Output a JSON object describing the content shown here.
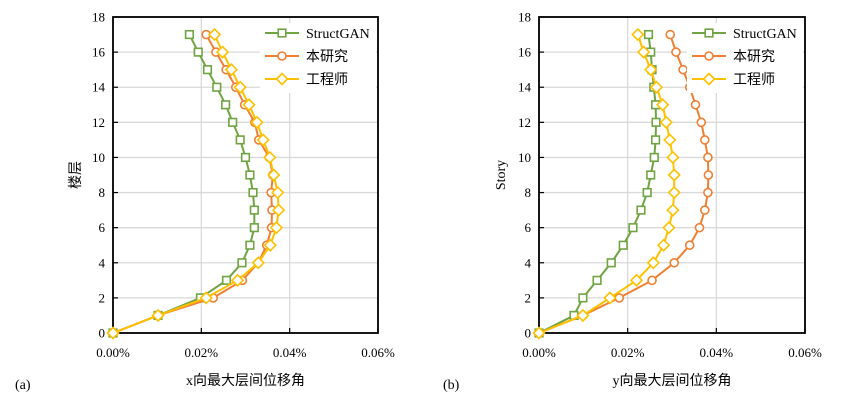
{
  "chart_data": [
    {
      "type": "line",
      "panel_label": "(a)",
      "xlabel": "x向最大层间位移角",
      "ylabel": "楼层",
      "xlim": [
        0,
        0.06
      ],
      "ylim": [
        0,
        18
      ],
      "x_unit": "%",
      "xticks": [
        "0.00%",
        "0.02%",
        "0.04%",
        "0.06%"
      ],
      "yticks": [
        "0",
        "2",
        "4",
        "6",
        "8",
        "10",
        "12",
        "14",
        "16",
        "18"
      ],
      "grid": true,
      "legend_position": "top-right",
      "y": [
        0,
        1,
        2,
        3,
        4,
        5,
        6,
        7,
        8,
        9,
        10,
        11,
        12,
        13,
        14,
        15,
        16,
        17
      ],
      "series": [
        {
          "name": "StructGAN",
          "color": "#70a442",
          "marker": "square",
          "values": [
            0,
            0.0102,
            0.0198,
            0.0257,
            0.0292,
            0.031,
            0.032,
            0.032,
            0.0317,
            0.031,
            0.03,
            0.0288,
            0.0271,
            0.0255,
            0.0235,
            0.0214,
            0.0193,
            0.0173
          ]
        },
        {
          "name": "本研究",
          "color": "#f07f33",
          "marker": "circle",
          "values": [
            0,
            0.0102,
            0.0227,
            0.0293,
            0.0329,
            0.0348,
            0.0359,
            0.036,
            0.0358,
            0.0362,
            0.0354,
            0.033,
            0.0321,
            0.0298,
            0.0278,
            0.0256,
            0.0233,
            0.0211
          ]
        },
        {
          "name": "工程师",
          "color": "#ffc000",
          "marker": "diamond",
          "values": [
            0,
            0.0102,
            0.0211,
            0.0282,
            0.0329,
            0.0356,
            0.037,
            0.0375,
            0.0373,
            0.0364,
            0.0355,
            0.034,
            0.0326,
            0.0308,
            0.0288,
            0.0268,
            0.0248,
            0.023
          ]
        }
      ]
    },
    {
      "type": "line",
      "panel_label": "(b)",
      "xlabel": "y向最大层间位移角",
      "ylabel": "Story",
      "xlim": [
        0,
        0.06
      ],
      "ylim": [
        0,
        18
      ],
      "x_unit": "%",
      "xticks": [
        "0.00%",
        "0.02%",
        "0.04%",
        "0.06%"
      ],
      "yticks": [
        "0",
        "2",
        "4",
        "6",
        "8",
        "10",
        "12",
        "14",
        "16",
        "18"
      ],
      "grid": true,
      "legend_position": "top-right",
      "y": [
        0,
        1,
        2,
        3,
        4,
        5,
        6,
        7,
        8,
        9,
        10,
        11,
        12,
        13,
        14,
        15,
        16,
        17
      ],
      "series": [
        {
          "name": "StructGAN",
          "color": "#70a442",
          "marker": "square",
          "values": [
            0,
            0.0079,
            0.0099,
            0.0131,
            0.0163,
            0.019,
            0.0212,
            0.023,
            0.0244,
            0.0252,
            0.026,
            0.0263,
            0.0264,
            0.0263,
            0.0259,
            0.0255,
            0.0252,
            0.0247
          ]
        },
        {
          "name": "本研究",
          "color": "#f07f33",
          "marker": "circle",
          "values": [
            0,
            0.0099,
            0.0181,
            0.0255,
            0.0305,
            0.034,
            0.0362,
            0.0374,
            0.0381,
            0.0382,
            0.0381,
            0.0374,
            0.0366,
            0.0353,
            0.034,
            0.0325,
            0.0309,
            0.0296
          ]
        },
        {
          "name": "工程师",
          "color": "#ffc000",
          "marker": "diamond",
          "values": [
            0,
            0.0099,
            0.016,
            0.022,
            0.0258,
            0.0281,
            0.0293,
            0.0302,
            0.0305,
            0.0305,
            0.0302,
            0.0295,
            0.0287,
            0.0279,
            0.0265,
            0.0252,
            0.0236,
            0.0223
          ]
        }
      ]
    }
  ]
}
